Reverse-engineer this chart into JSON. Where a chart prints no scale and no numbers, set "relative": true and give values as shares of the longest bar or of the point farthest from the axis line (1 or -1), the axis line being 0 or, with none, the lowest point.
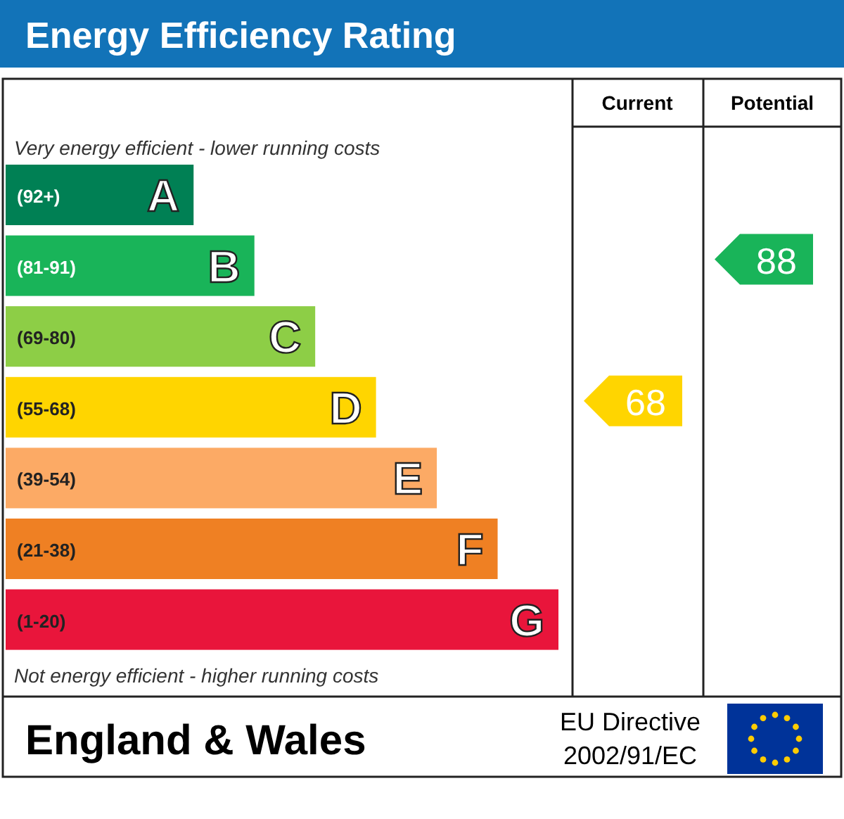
{
  "chart_data": {
    "type": "bar",
    "orientation": "horizontal",
    "relative": true,
    "title": "Energy Efficiency Rating",
    "categories": [
      "A",
      "B",
      "C",
      "D",
      "E",
      "F",
      "G"
    ],
    "values": [
      0.34,
      0.45,
      0.56,
      0.67,
      0.78,
      0.89,
      1
    ],
    "colors": [
      "#008054",
      "#19b459",
      "#8dce46",
      "#ffd500",
      "#fcaa65",
      "#ef8023",
      "#e9153b"
    ],
    "annotations": [
      "Current",
      "Potential",
      "Very energy efficient - lower running costs",
      "Not energy efficient - higher running costs",
      "England & Wales",
      "EU Directive",
      "2002/91/EC",
      "(92+)",
      "(81-91)",
      "(69-80)",
      "(55-68)",
      "(39-54)",
      "(21-38)",
      "(1-20)",
      "68",
      "88"
    ]
  }
}
